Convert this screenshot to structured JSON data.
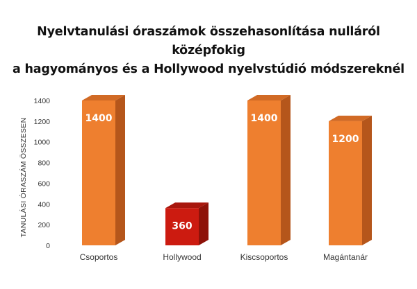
{
  "chart_data": {
    "type": "bar",
    "title_lines": [
      "Nyelvtanulási óraszámok összehasonlítása nulláról középfokig",
      "a hagyományos és a Hollywood nyelvstúdió módszereknél"
    ],
    "xlabel": "",
    "ylabel": "TANULÁSI ÓRASZÁM ÖSSZESEN",
    "categories": [
      "Csoportos",
      "Hollywood",
      "Kiscsoportos",
      "Magántanár"
    ],
    "values": [
      1400,
      360,
      1400,
      1200
    ],
    "data_labels": [
      "1400",
      "360",
      "1400",
      "1200"
    ],
    "ylim": [
      0,
      1400
    ],
    "yticks": [
      0,
      200,
      400,
      600,
      800,
      1000,
      1200,
      1400
    ],
    "grid": false,
    "legend": "none",
    "colors": {
      "bars": [
        "#ee7f2f",
        "#cc1b10",
        "#ee7f2f",
        "#ee7f2f"
      ],
      "bar_side": [
        "#b5561b",
        "#8e1209",
        "#b5561b",
        "#b5561b"
      ],
      "bar_top": [
        "#d16a25",
        "#a8170d",
        "#d16a25",
        "#d16a25"
      ]
    }
  }
}
